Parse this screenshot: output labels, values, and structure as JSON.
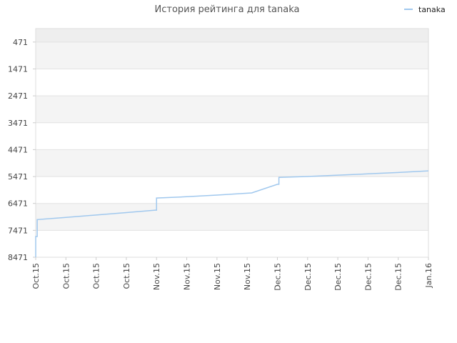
{
  "chart_data": {
    "type": "line",
    "title": "История рейтинга для tanaka",
    "xlabel": "",
    "ylabel": "",
    "y_inverted": true,
    "ylim": [
      8471,
      -29
    ],
    "y_ticks": [
      471,
      1471,
      2471,
      3471,
      4471,
      5471,
      6471,
      7471,
      8471
    ],
    "x_ticks": [
      "Oct.15",
      "Oct.15",
      "Oct.15",
      "Oct.15",
      "Nov.15",
      "Nov.15",
      "Nov.15",
      "Nov.15",
      "Dec.15",
      "Dec.15",
      "Dec.15",
      "Dec.15",
      "Dec.15",
      "Jan.16"
    ],
    "x_range": [
      0,
      13
    ],
    "grid": true,
    "legend_position": "top-right",
    "series": [
      {
        "name": "tanaka",
        "color": "#a0c8ee",
        "points": [
          [
            0.0,
            8471
          ],
          [
            0.0,
            7700
          ],
          [
            0.05,
            7700
          ],
          [
            0.05,
            7070
          ],
          [
            1.0,
            6990
          ],
          [
            2.0,
            6900
          ],
          [
            3.0,
            6810
          ],
          [
            3.95,
            6720
          ],
          [
            4.0,
            6720
          ],
          [
            4.0,
            6270
          ],
          [
            5.0,
            6220
          ],
          [
            6.0,
            6160
          ],
          [
            7.0,
            6090
          ],
          [
            7.15,
            6080
          ],
          [
            8.0,
            5760
          ],
          [
            8.05,
            5760
          ],
          [
            8.05,
            5500
          ],
          [
            9.0,
            5470
          ],
          [
            10.0,
            5420
          ],
          [
            11.0,
            5370
          ],
          [
            12.0,
            5320
          ],
          [
            13.0,
            5260
          ]
        ]
      }
    ]
  }
}
